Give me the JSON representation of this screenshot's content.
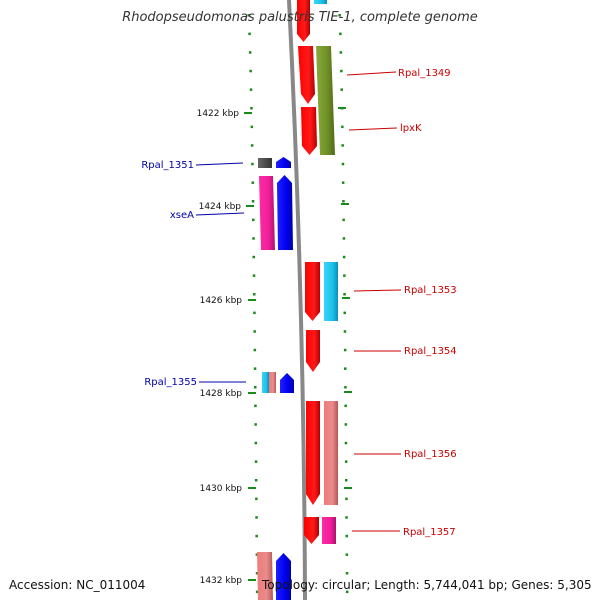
{
  "title": "Rhodopseudomonas palustris TIE-1, complete genome",
  "footer": {
    "accession": "Accession: NC_011004",
    "topology": "Topology: circular; Length: 5,744,041 bp; Genes: 5,305"
  },
  "colors": {
    "tick_green": "#1a8a1a",
    "label_red": "#cc0000",
    "label_blue": "#0000aa",
    "backbone": "#888888"
  },
  "scale_labels": [
    "1422 kbp",
    "1424 kbp",
    "1426 kbp",
    "1428 kbp",
    "1430 kbp",
    "1432 kbp"
  ],
  "gene_labels": {
    "right": [
      "Rpal_1349",
      "lpxK",
      "Rpal_1353",
      "Rpal_1354",
      "Rpal_1356",
      "Rpal_1357"
    ],
    "left": [
      "Rpal_1351",
      "xseA",
      "Rpal_1355"
    ]
  }
}
